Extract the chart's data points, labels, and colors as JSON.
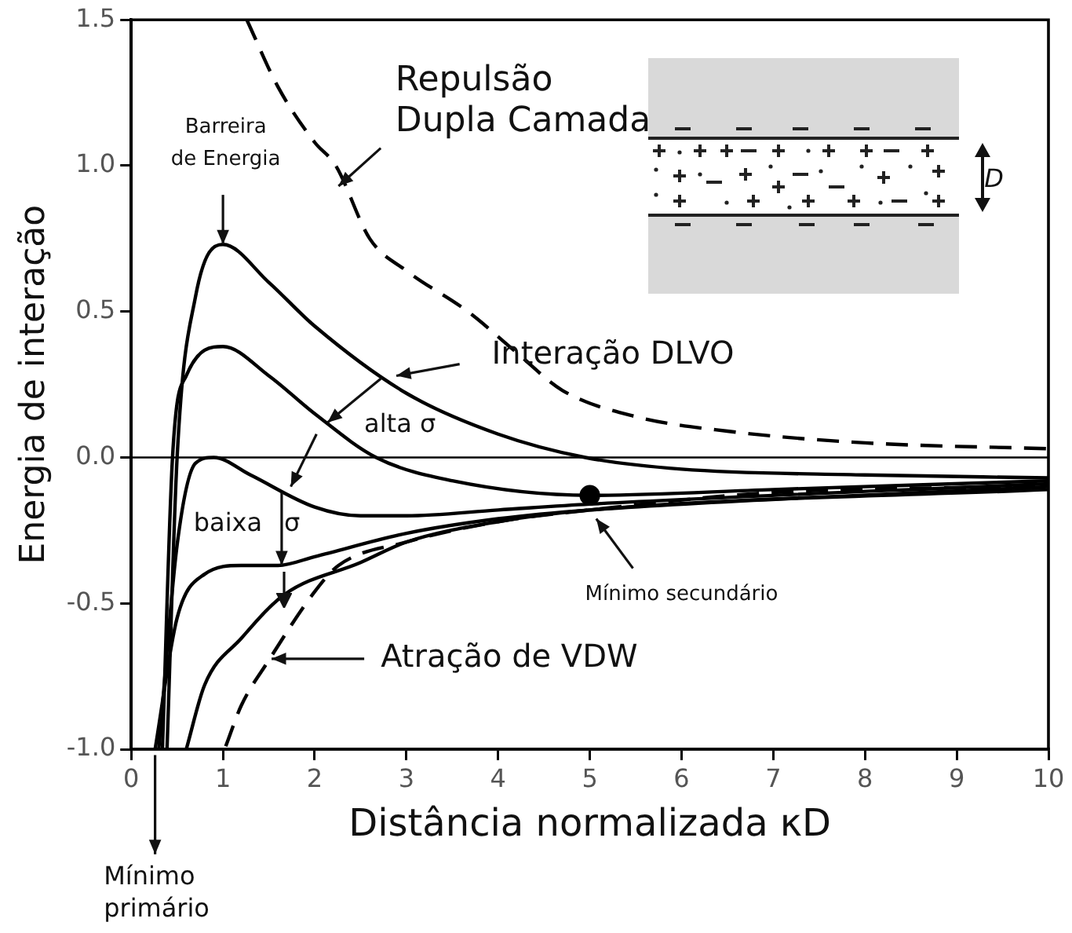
{
  "chart_data": {
    "type": "line",
    "xlabel": "Distância normalizada κD",
    "ylabel": "Energia de interação",
    "xlim": [
      0,
      10
    ],
    "xticks": [
      0,
      1,
      2,
      3,
      4,
      5,
      6,
      7,
      8,
      9,
      10
    ],
    "ylim": [
      -1,
      1.5
    ],
    "yticks": [
      {
        "value": -1,
        "label": "-1.0"
      },
      {
        "value": -0.5,
        "label": "-0.5"
      },
      {
        "value": 0,
        "label": "0.0"
      },
      {
        "value": 0.5,
        "label": "0.5"
      },
      {
        "value": 1,
        "label": "1.0"
      },
      {
        "value": 1.5,
        "label": "1.5"
      }
    ],
    "grid": false,
    "legend": false,
    "marker": "none",
    "series": [
      {
        "color": "#000000",
        "line_style": "dashed",
        "x": [
          1.26,
          1.6,
          2.0,
          2.23,
          2.6,
          3.0,
          3.67,
          4.2,
          4.7,
          5.5,
          6.5,
          8,
          10
        ],
        "values": [
          1.5,
          1.27,
          1.08,
          1.0,
          0.75,
          0.64,
          0.5,
          0.36,
          0.23,
          0.14,
          0.09,
          0.05,
          0.03
        ]
      },
      {
        "color": "#000000",
        "line_style": "dashed",
        "x": [
          1.03,
          1.2,
          1.49,
          2.0,
          2.26,
          3.0,
          4.0,
          5.0,
          7.0,
          10
        ],
        "values": [
          -0.99,
          -0.85,
          -0.7,
          -0.46,
          -0.37,
          -0.29,
          -0.22,
          -0.18,
          -0.12,
          -0.1
        ]
      },
      {
        "color": "#000000",
        "line_style": "solid",
        "x": [
          0.39,
          0.5,
          0.7,
          1.0,
          1.5,
          2.0,
          3.0,
          4.0,
          4.95,
          6.0,
          8.0,
          10
        ],
        "values": [
          -1,
          0,
          0.55,
          0.73,
          0.6,
          0.45,
          0.22,
          0.08,
          0,
          -0.04,
          -0.06,
          -0.07
        ]
      },
      {
        "color": "#000000",
        "line_style": "solid",
        "x": [
          0.34,
          0.45,
          0.6,
          1.0,
          1.5,
          2.0,
          2.67,
          3.5,
          5.0,
          7.0,
          10
        ],
        "values": [
          -1,
          0,
          0.28,
          0.38,
          0.28,
          0.15,
          0,
          -0.08,
          -0.13,
          -0.11,
          -0.08
        ]
      },
      {
        "color": "#000000",
        "line_style": "solid",
        "x": [
          0.3,
          0.5,
          0.7,
          0.9,
          1.3,
          2.0,
          2.5,
          3.0,
          4.0,
          5.0,
          10
        ],
        "values": [
          -1,
          -0.3,
          -0.02,
          0,
          -0.06,
          -0.17,
          -0.2,
          -0.2,
          -0.18,
          -0.16,
          -0.09
        ]
      },
      {
        "color": "#000000",
        "line_style": "solid",
        "x": [
          0.26,
          0.5,
          0.8,
          1.2,
          1.6,
          2.0,
          3.0,
          4.0,
          5.0,
          10
        ],
        "values": [
          -1,
          -0.55,
          -0.4,
          -0.37,
          -0.37,
          -0.34,
          -0.26,
          -0.21,
          -0.18,
          -0.1
        ]
      },
      {
        "color": "#000000",
        "line_style": "solid",
        "x": [
          0.6,
          0.8,
          1.2,
          1.67,
          2.5,
          3.0,
          4.0,
          5.0,
          10
        ],
        "values": [
          -1,
          -0.78,
          -0.62,
          -0.47,
          -0.36,
          -0.29,
          -0.22,
          -0.18,
          -0.11
        ]
      },
      {
        "type": "scatter",
        "color": "#000000",
        "marker": "circle",
        "x": [
          5
        ],
        "values": [
          -0.13
        ]
      }
    ],
    "ref_lines": [
      {
        "axis": "y",
        "value": 0,
        "color": "#000000"
      }
    ],
    "annotations": [
      {
        "text": "Repulsão\nDupla Camada",
        "x": 2.26,
        "y": 0.93
      },
      {
        "text": "Barreira\nde Energia",
        "x": 1.0,
        "y": 0.73
      },
      {
        "text": "Interação DLVO",
        "x": 2.89,
        "y": 0.28
      },
      "alta σ",
      "baixa σ",
      {
        "text": "Mínimo secundário",
        "x": 5.07,
        "y": -0.21
      },
      {
        "text": "Atração de VDW",
        "x": 1.53,
        "y": -0.69
      },
      "D",
      "Mínimo\nprimário"
    ]
  }
}
